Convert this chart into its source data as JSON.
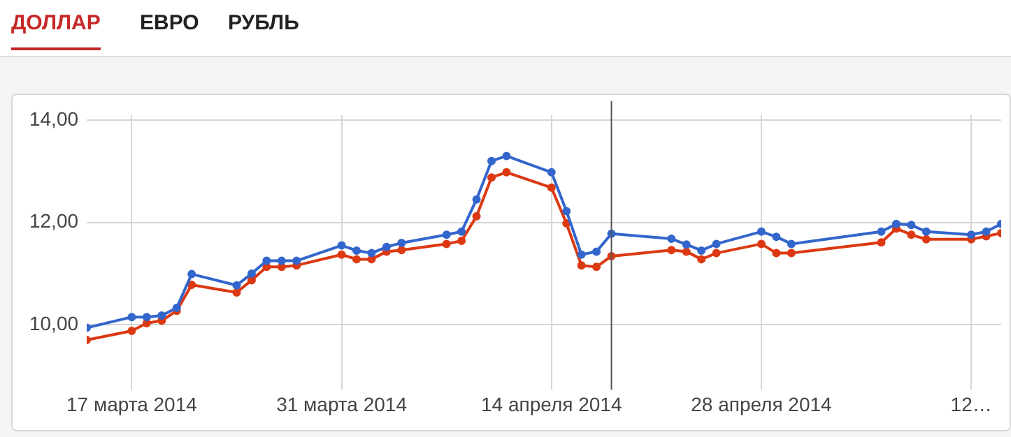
{
  "chart_data": {
    "type": "line",
    "annotations": [
      "ДОЛЛАР",
      "ЕВРО",
      "РУБЛЬ"
    ],
    "x": [
      "2014-03-14",
      "2014-03-17",
      "2014-03-18",
      "2014-03-19",
      "2014-03-20",
      "2014-03-21",
      "2014-03-24",
      "2014-03-25",
      "2014-03-26",
      "2014-03-27",
      "2014-03-28",
      "2014-03-31",
      "2014-04-01",
      "2014-04-02",
      "2014-04-03",
      "2014-04-04",
      "2014-04-07",
      "2014-04-08",
      "2014-04-09",
      "2014-04-10",
      "2014-04-11",
      "2014-04-14",
      "2014-04-15",
      "2014-04-16",
      "2014-04-17",
      "2014-04-18",
      "2014-04-22",
      "2014-04-23",
      "2014-04-24",
      "2014-04-25",
      "2014-04-28",
      "2014-04-29",
      "2014-04-30",
      "2014-05-06",
      "2014-05-07",
      "2014-05-08",
      "2014-05-09",
      "2014-05-12",
      "2014-05-13",
      "2014-05-14"
    ],
    "series": [
      {
        "color": "#3366cc",
        "values": [
          9.94,
          10.15,
          10.15,
          10.18,
          10.33,
          10.99,
          10.77,
          11.0,
          11.25,
          11.25,
          11.25,
          11.55,
          11.45,
          11.4,
          11.52,
          11.6,
          11.76,
          11.82,
          12.45,
          13.2,
          13.3,
          12.98,
          12.22,
          11.37,
          11.43,
          11.78,
          11.68,
          11.57,
          11.45,
          11.58,
          11.82,
          11.72,
          11.58,
          11.82,
          11.97,
          11.95,
          11.82,
          11.76,
          11.82,
          11.97
        ]
      },
      {
        "color": "#dc3912",
        "values": [
          9.7,
          9.88,
          10.03,
          10.08,
          10.27,
          10.78,
          10.63,
          10.87,
          11.13,
          11.13,
          11.16,
          11.37,
          11.28,
          11.28,
          11.43,
          11.46,
          11.58,
          11.64,
          12.12,
          12.88,
          12.98,
          12.68,
          11.98,
          11.16,
          11.13,
          11.34,
          11.46,
          11.43,
          11.28,
          11.4,
          11.58,
          11.4,
          11.4,
          11.61,
          11.88,
          11.76,
          11.67,
          11.67,
          11.73,
          11.79
        ]
      }
    ],
    "xlim": [
      "2014-03-14",
      "2014-05-14"
    ],
    "xticks": [
      {
        "value": "2014-03-17",
        "label": "17 марта 2014"
      },
      {
        "value": "2014-03-31",
        "label": "31 марта 2014"
      },
      {
        "value": "2014-04-14",
        "label": "14 апреля 2014"
      },
      {
        "value": "2014-04-28",
        "label": "28 апреля 2014"
      },
      {
        "value": "2014-05-12",
        "label": "12…"
      }
    ],
    "ylim": [
      9.0,
      14.1
    ],
    "yticks": [
      {
        "value": 10,
        "label": "10,00"
      },
      {
        "value": 12,
        "label": "12,00"
      },
      {
        "value": 14,
        "label": "14,00"
      }
    ],
    "ref_lines": [
      {
        "axis": "x",
        "value": "2014-04-18",
        "color": "#555555"
      }
    ],
    "grid": true,
    "legend": false,
    "marker": "circle",
    "line_style": "solid"
  }
}
